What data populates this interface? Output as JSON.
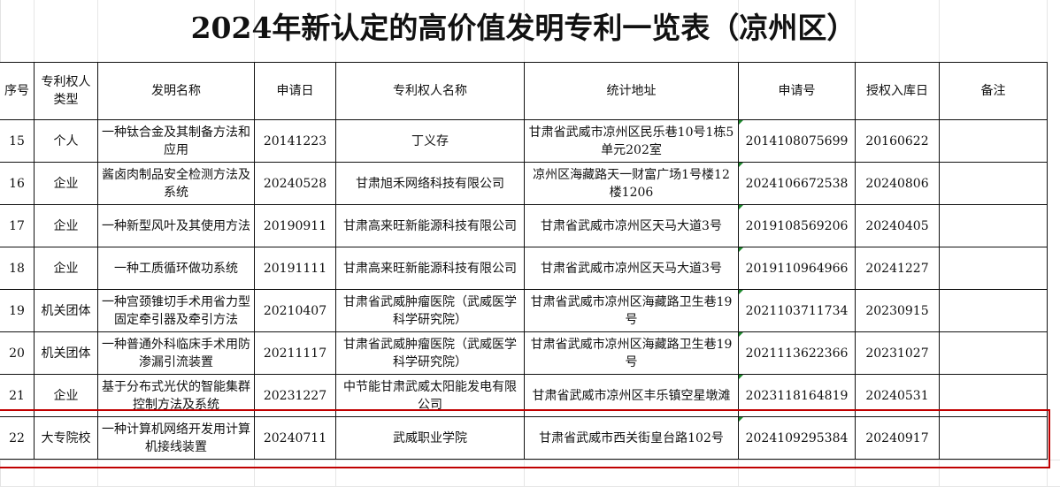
{
  "title": "2024年新认定的高价值发明专利一览表（凉州区）",
  "columns": [
    "序号",
    "专利权人类型",
    "发明名称",
    "申请日",
    "专利权人名称",
    "统计地址",
    "申请号",
    "授权入库日",
    "备注"
  ],
  "rows": [
    [
      "15",
      "个人",
      "一种钛合金及其制备方法和应用",
      "20141223",
      "丁义存",
      "甘肃省武威市凉州区民乐巷10号1栋5单元202室",
      "2014108075699",
      "20160622",
      ""
    ],
    [
      "16",
      "企业",
      "酱卤肉制品安全检测方法及系统",
      "20240528",
      "甘肃旭禾网络科技有限公司",
      "凉州区海藏路天一财富广场1号楼12楼1206",
      "2024106672538",
      "20240806",
      ""
    ],
    [
      "17",
      "企业",
      "一种新型风叶及其使用方法",
      "20190911",
      "甘肃高来旺新能源科技有限公司",
      "甘肃省武威市凉州区天马大道3号",
      "2019108569206",
      "20240405",
      ""
    ],
    [
      "18",
      "企业",
      "一种工质循环做功系统",
      "20191111",
      "甘肃高来旺新能源科技有限公司",
      "甘肃省武威市凉州区天马大道3号",
      "2019110964966",
      "20241227",
      ""
    ],
    [
      "19",
      "机关团体",
      "一种宫颈锥切手术用省力型固定牵引器及牵引方法",
      "20210407",
      "甘肃省武威肿瘤医院（武威医学科学研究院）",
      "甘肃省武威市凉州区海藏路卫生巷19号",
      "2021103711734",
      "20230915",
      ""
    ],
    [
      "20",
      "机关团体",
      "一种普通外科临床手术用防渗漏引流装置",
      "20211117",
      "甘肃省武威肿瘤医院（武威医学科学研究院）",
      "甘肃省武威市凉州区海藏路卫生巷19号",
      "2021113622366",
      "20231027",
      ""
    ],
    [
      "21",
      "企业",
      "基于分布式光伏的智能集群控制方法及系统",
      "20231227",
      "中节能甘肃武威太阳能发电有限公司",
      "甘肃省武威市凉州区丰乐镇空星墩滩",
      "2023118164819",
      "20240531",
      ""
    ],
    [
      "22",
      "大专院校",
      "一种计算机网络开发用计算机接线装置",
      "20240711",
      "武威职业学院",
      "甘肃省武威市西关街皇台路102号",
      "2024109295384",
      "20240917",
      ""
    ]
  ],
  "highlighted_row": "22",
  "colors": {
    "highlight_border": "#c00000",
    "cell_marker": "#1e8a2e"
  }
}
